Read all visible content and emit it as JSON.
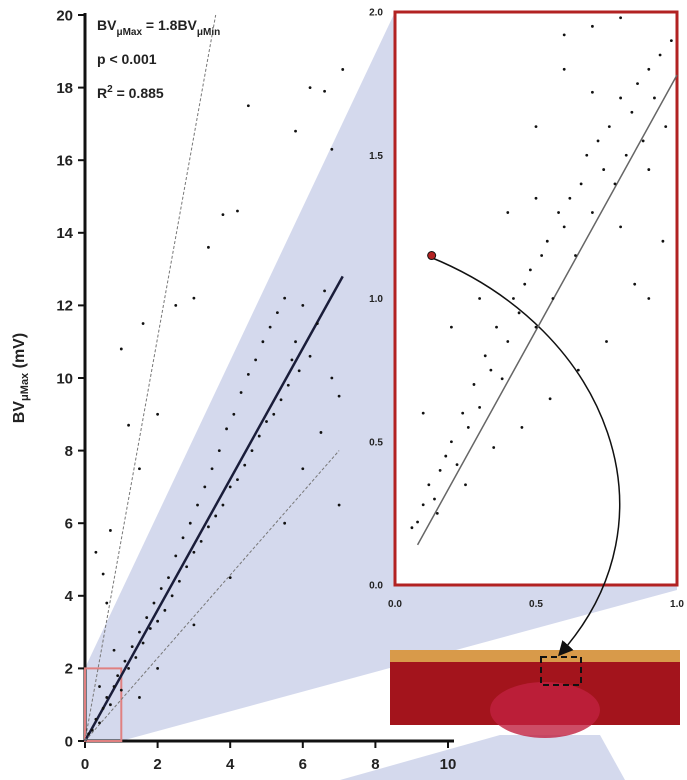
{
  "chart_data": [
    {
      "type": "scatter",
      "color": "#111111",
      "y_label": [
        "BV",
        "μMax",
        " (mV)"
      ],
      "annotations": [
        [
          "BV",
          "μMax",
          " = 1.8BV",
          "μMin"
        ],
        [
          "p < 0.001"
        ],
        [
          "R",
          "2",
          " = 0.885"
        ]
      ],
      "xlim": [
        0,
        10
      ],
      "ylim": [
        0,
        20
      ],
      "xticks": [
        0,
        2,
        4,
        6,
        8,
        10
      ],
      "yticks": [
        0,
        2,
        4,
        6,
        8,
        10,
        12,
        14,
        16,
        18,
        20
      ],
      "x": [
        0.1,
        0.2,
        0.3,
        0.4,
        0.5,
        0.6,
        0.7,
        0.8,
        0.9,
        1.0,
        1.1,
        1.2,
        1.3,
        1.4,
        1.5,
        1.6,
        1.7,
        1.8,
        1.9,
        2.0,
        2.1,
        2.2,
        2.3,
        2.4,
        2.5,
        2.6,
        2.7,
        2.8,
        2.9,
        3.0,
        3.1,
        3.2,
        3.3,
        3.4,
        3.5,
        3.6,
        3.7,
        3.8,
        3.9,
        4.0,
        4.1,
        4.2,
        4.3,
        4.4,
        4.5,
        4.6,
        4.7,
        4.8,
        4.9,
        5.0,
        5.1,
        5.2,
        5.3,
        5.4,
        5.5,
        5.6,
        5.7,
        5.8,
        5.9,
        6.0,
        6.2,
        6.4,
        6.6,
        6.8,
        7.0,
        0.3,
        0.5,
        0.7,
        1.0,
        1.2,
        1.5,
        2.0,
        2.5,
        3.0,
        3.4,
        3.8,
        4.2,
        4.5,
        5.8,
        6.2,
        6.6,
        6.8,
        7.1,
        7.0,
        5.5,
        4.0,
        3.0,
        2.0,
        1.5,
        6.5,
        6.0,
        1.6,
        0.6,
        0.8,
        0.4
      ],
      "values": [
        0.2,
        0.3,
        0.6,
        0.5,
        0.9,
        1.2,
        1.0,
        1.5,
        1.8,
        1.4,
        2.2,
        2.0,
        2.6,
        2.3,
        3.0,
        2.7,
        3.4,
        3.1,
        3.8,
        3.3,
        4.2,
        3.6,
        4.5,
        4.0,
        5.1,
        4.4,
        5.6,
        4.8,
        6.0,
        5.2,
        6.5,
        5.5,
        7.0,
        5.9,
        7.5,
        6.2,
        8.0,
        6.5,
        8.6,
        7.0,
        9.0,
        7.2,
        9.6,
        7.6,
        10.1,
        8.0,
        10.5,
        8.4,
        11.0,
        8.8,
        11.4,
        9.0,
        11.8,
        9.4,
        12.2,
        9.8,
        10.5,
        11.0,
        10.2,
        12.0,
        10.6,
        11.5,
        12.4,
        10.0,
        9.5,
        5.2,
        4.6,
        5.8,
        10.8,
        8.7,
        7.5,
        9.0,
        12.0,
        12.2,
        13.6,
        14.5,
        14.6,
        17.5,
        16.8,
        18.0,
        17.9,
        16.3,
        18.5,
        6.5,
        6.0,
        4.5,
        3.2,
        2.0,
        1.2,
        8.5,
        7.5,
        11.5,
        3.8,
        2.5,
        1.5
      ],
      "lines": [
        {
          "x": [
            0,
            7.1
          ],
          "y": [
            0,
            12.8
          ],
          "style": "solid"
        },
        {
          "x": [
            0,
            3.6
          ],
          "y": [
            0,
            20
          ],
          "style": "dashed"
        },
        {
          "x": [
            0,
            7.0
          ],
          "y": [
            0,
            8.0
          ],
          "style": "dashed"
        }
      ]
    },
    {
      "type": "scatter",
      "color": "#111111",
      "xlim": [
        0,
        1
      ],
      "ylim": [
        0,
        2
      ],
      "xticks": [
        {
          "value": 0,
          "label": "0.0"
        },
        0.5,
        {
          "value": 1,
          "label": "1.0"
        }
      ],
      "yticks": [
        {
          "value": 0,
          "label": "0.0"
        },
        0.5,
        {
          "value": 1,
          "label": "1.0"
        },
        1.5,
        {
          "value": 2,
          "label": "2.0"
        }
      ],
      "x": [
        0.06,
        0.08,
        0.1,
        0.12,
        0.14,
        0.16,
        0.18,
        0.2,
        0.22,
        0.24,
        0.26,
        0.28,
        0.3,
        0.32,
        0.34,
        0.36,
        0.38,
        0.4,
        0.42,
        0.44,
        0.46,
        0.48,
        0.5,
        0.52,
        0.54,
        0.56,
        0.58,
        0.6,
        0.62,
        0.64,
        0.66,
        0.68,
        0.7,
        0.72,
        0.74,
        0.76,
        0.78,
        0.8,
        0.82,
        0.84,
        0.86,
        0.88,
        0.9,
        0.92,
        0.94,
        0.96,
        0.98,
        0.1,
        0.2,
        0.3,
        0.4,
        0.5,
        0.6,
        0.7,
        0.8,
        0.9,
        0.25,
        0.45,
        0.65,
        0.85,
        0.35,
        0.55,
        0.75,
        0.95,
        0.15,
        0.5,
        0.7,
        0.9,
        0.6,
        0.8
      ],
      "values": [
        0.2,
        0.22,
        0.28,
        0.35,
        0.3,
        0.4,
        0.45,
        0.5,
        0.42,
        0.6,
        0.55,
        0.7,
        0.62,
        0.8,
        0.75,
        0.9,
        0.72,
        0.85,
        1.0,
        0.95,
        1.05,
        1.1,
        0.9,
        1.15,
        1.2,
        1.0,
        1.3,
        1.25,
        1.35,
        1.15,
        1.4,
        1.5,
        1.3,
        1.55,
        1.45,
        1.6,
        1.4,
        1.7,
        1.5,
        1.65,
        1.75,
        1.55,
        1.8,
        1.7,
        1.85,
        1.6,
        1.9,
        0.6,
        0.9,
        1.0,
        1.3,
        1.6,
        1.8,
        1.95,
        1.98,
        1.0,
        0.35,
        0.55,
        0.75,
        1.05,
        0.48,
        0.65,
        0.85,
        1.2,
        0.25,
        1.35,
        1.72,
        1.45,
        1.92,
        1.25
      ],
      "line": {
        "x": [
          0.08,
          1.0
        ],
        "y": [
          0.14,
          1.78
        ]
      },
      "highlight": {
        "x": 0.13,
        "y": 1.15,
        "color": "#b22222"
      }
    }
  ]
}
